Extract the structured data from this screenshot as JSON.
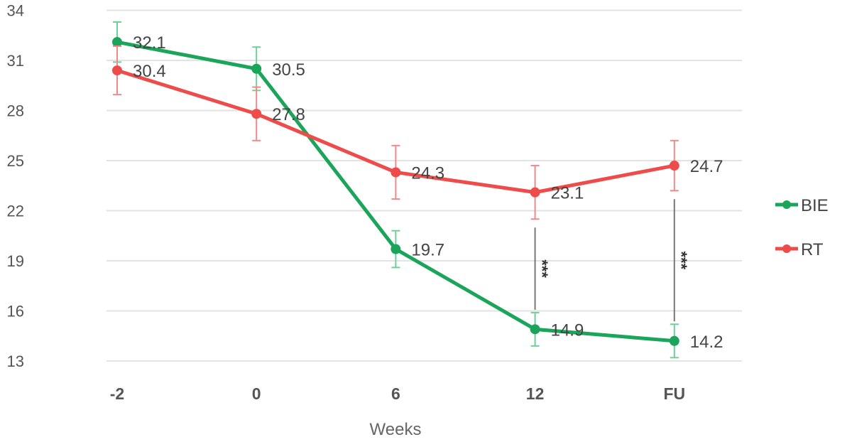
{
  "chart_data": {
    "type": "line",
    "title": "",
    "xlabel": "Weeks",
    "ylabel": "",
    "categories": [
      "-2",
      "0",
      "6",
      "12",
      "FU"
    ],
    "ylim": [
      13,
      34
    ],
    "yticks": [
      13,
      16,
      19,
      22,
      25,
      28,
      31,
      34
    ],
    "grid": true,
    "legend_position": "right",
    "series": [
      {
        "name": "BIE",
        "color": "#1aa55a",
        "values": [
          32.1,
          30.5,
          19.7,
          14.9,
          14.2
        ],
        "errors": [
          1.2,
          1.3,
          1.1,
          1.0,
          1.0
        ],
        "labels": [
          "32.1",
          "30.5",
          "19.7",
          "14.9",
          "14.2"
        ]
      },
      {
        "name": "RT",
        "color": "#ee4b4b",
        "values": [
          30.4,
          27.8,
          24.3,
          23.1,
          24.7
        ],
        "errors": [
          1.45,
          1.6,
          1.6,
          1.6,
          1.5
        ],
        "labels": [
          "30.4",
          "27.8",
          "24.3",
          "23.1",
          "24.7"
        ]
      }
    ],
    "annotations": [
      {
        "category": "12",
        "text": "***"
      },
      {
        "category": "FU",
        "text": "***"
      }
    ]
  }
}
